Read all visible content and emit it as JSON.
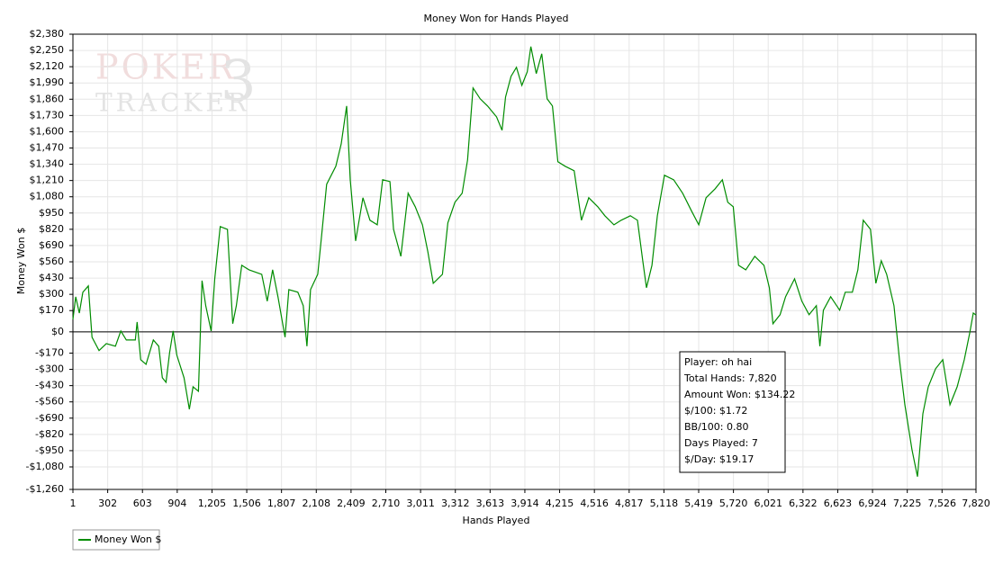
{
  "chart_data": {
    "type": "line",
    "title": "Money Won for Hands Played",
    "x_label": "Hands Played",
    "y_label": "Money Won $",
    "watermark": [
      "POKER",
      "TRACKER",
      "3"
    ],
    "grid": true,
    "legend": "bottom-left",
    "xlim": [
      1,
      7820
    ],
    "ylim": [
      -1260,
      2380
    ],
    "xticks": [
      1,
      302,
      603,
      904,
      {
        "value": 1205,
        "label": "1,205"
      },
      {
        "value": 1506,
        "label": "1,506"
      },
      {
        "value": 1807,
        "label": "1,807"
      },
      {
        "value": 2108,
        "label": "2,108"
      },
      {
        "value": 2409,
        "label": "2,409"
      },
      {
        "value": 2710,
        "label": "2,710"
      },
      {
        "value": 3011,
        "label": "3,011"
      },
      {
        "value": 3312,
        "label": "3,312"
      },
      {
        "value": 3613,
        "label": "3,613"
      },
      {
        "value": 3914,
        "label": "3,914"
      },
      {
        "value": 4215,
        "label": "4,215"
      },
      {
        "value": 4516,
        "label": "4,516"
      },
      {
        "value": 4817,
        "label": "4,817"
      },
      {
        "value": 5118,
        "label": "5,118"
      },
      {
        "value": 5419,
        "label": "5,419"
      },
      {
        "value": 5720,
        "label": "5,720"
      },
      {
        "value": 6021,
        "label": "6,021"
      },
      {
        "value": 6322,
        "label": "6,322"
      },
      {
        "value": 6623,
        "label": "6,623"
      },
      {
        "value": 6924,
        "label": "6,924"
      },
      {
        "value": 7225,
        "label": "7,225"
      },
      {
        "value": 7526,
        "label": "7,526"
      },
      {
        "value": 7820,
        "label": "7,820"
      }
    ],
    "yticks": [
      {
        "value": 2380,
        "label": "$2,380"
      },
      {
        "value": 2250,
        "label": "$2,250"
      },
      {
        "value": 2120,
        "label": "$2,120"
      },
      {
        "value": 1990,
        "label": "$1,990"
      },
      {
        "value": 1860,
        "label": "$1,860"
      },
      {
        "value": 1730,
        "label": "$1,730"
      },
      {
        "value": 1600,
        "label": "$1,600"
      },
      {
        "value": 1470,
        "label": "$1,470"
      },
      {
        "value": 1340,
        "label": "$1,340"
      },
      {
        "value": 1210,
        "label": "$1,210"
      },
      {
        "value": 1080,
        "label": "$1,080"
      },
      {
        "value": 950,
        "label": "$950"
      },
      {
        "value": 820,
        "label": "$820"
      },
      {
        "value": 690,
        "label": "$690"
      },
      {
        "value": 560,
        "label": "$560"
      },
      {
        "value": 430,
        "label": "$430"
      },
      {
        "value": 300,
        "label": "$300"
      },
      {
        "value": 170,
        "label": "$170"
      },
      {
        "value": 0,
        "label": "$0"
      },
      {
        "value": -170,
        "label": "-$170"
      },
      {
        "value": -300,
        "label": "-$300"
      },
      {
        "value": -430,
        "label": "-$430"
      },
      {
        "value": -560,
        "label": "-$560"
      },
      {
        "value": -690,
        "label": "-$690"
      },
      {
        "value": -820,
        "label": "-$820"
      },
      {
        "value": -950,
        "label": "-$950"
      },
      {
        "value": -1080,
        "label": "-$1,080"
      },
      {
        "value": -1260,
        "label": "-$1,260"
      }
    ],
    "x": [
      1,
      25,
      56,
      87,
      134,
      166,
      227,
      290,
      369,
      416,
      463,
      541,
      557,
      588,
      634,
      697,
      744,
      775,
      807,
      838,
      869,
      901,
      963,
      1009,
      1041,
      1088,
      1119,
      1151,
      1198,
      1229,
      1276,
      1339,
      1385,
      1416,
      1463,
      1526,
      1636,
      1683,
      1730,
      1776,
      1838,
      1870,
      1948,
      1995,
      2027,
      2058,
      2121,
      2152,
      2198,
      2277,
      2324,
      2371,
      2402,
      2449,
      2512,
      2573,
      2636,
      2683,
      2746,
      2777,
      2840,
      2903,
      2965,
      3027,
      3074,
      3121,
      3200,
      3247,
      3309,
      3371,
      3418,
      3465,
      3528,
      3591,
      3669,
      3716,
      3747,
      3794,
      3841,
      3888,
      3935,
      3966,
      4013,
      4060,
      4107,
      4153,
      4200,
      4263,
      4341,
      4404,
      4467,
      4545,
      4607,
      4685,
      4748,
      4827,
      4889,
      4935,
      4967,
      5014,
      5061,
      5123,
      5202,
      5280,
      5358,
      5420,
      5483,
      5562,
      5624,
      5671,
      5718,
      5764,
      5827,
      5905,
      5984,
      6031,
      6062,
      6124,
      6171,
      6249,
      6312,
      6375,
      6438,
      6468,
      6499,
      6562,
      6640,
      6688,
      6750,
      6797,
      6844,
      6906,
      6953,
      7000,
      7047,
      7110,
      7157,
      7204,
      7266,
      7313,
      7360,
      7407,
      7470,
      7532,
      7595,
      7657,
      7719,
      7766,
      7797,
      7820
    ],
    "series": [
      {
        "name": "Money Won $",
        "color": "#008c00",
        "values": [
          100,
          280,
          150,
          316,
          367,
          -43,
          -150,
          -94,
          -115,
          7,
          -65,
          -65,
          79,
          -223,
          -259,
          -65,
          -115,
          -367,
          -403,
          -165,
          7,
          -187,
          -367,
          -619,
          -439,
          -475,
          410,
          209,
          7,
          424,
          842,
          820,
          65,
          209,
          532,
          496,
          460,
          245,
          496,
          281,
          -43,
          338,
          317,
          209,
          -115,
          338,
          460,
          748,
          1180,
          1324,
          1504,
          1806,
          1216,
          727,
          1072,
          892,
          856,
          1216,
          1202,
          820,
          604,
          1108,
          1000,
          856,
          640,
          388,
          460,
          871,
          1036,
          1108,
          1374,
          1950,
          1863,
          1806,
          1719,
          1612,
          1878,
          2043,
          2115,
          1971,
          2079,
          2281,
          2065,
          2223,
          1863,
          1806,
          1360,
          1324,
          1288,
          892,
          1072,
          1000,
          928,
          856,
          892,
          928,
          892,
          568,
          353,
          532,
          928,
          1252,
          1216,
          1108,
          964,
          856,
          1072,
          1144,
          1216,
          1036,
          1000,
          532,
          496,
          604,
          532,
          353,
          65,
          137,
          281,
          424,
          245,
          137,
          209,
          -115,
          173,
          281,
          173,
          317,
          317,
          496,
          892,
          820,
          388,
          568,
          460,
          209,
          -223,
          -583,
          -942,
          -1158,
          -655,
          -439,
          -295,
          -223,
          -583,
          -439,
          -223,
          -7,
          151,
          134.22
        ]
      }
    ],
    "info_box": [
      "Player: oh hai",
      "Total Hands: 7,820",
      "Amount Won: $134.22",
      "$/100: $1.72",
      "BB/100: 0.80",
      "Days Played: 7",
      "$/Day: $19.17"
    ]
  }
}
